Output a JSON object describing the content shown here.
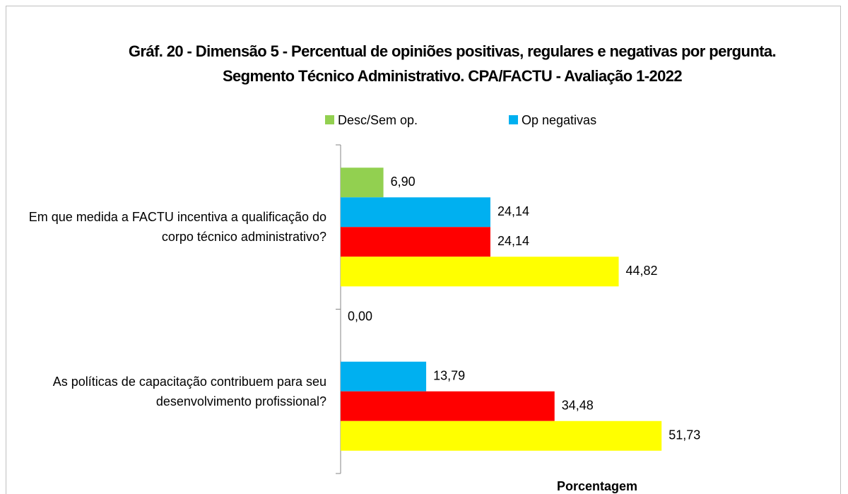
{
  "chart_data": {
    "type": "bar",
    "orientation": "horizontal",
    "title": "Gráf. 20 - Dimensão 5 - Percentual de opiniões positivas, regulares e negativas por pergunta. Segmento Técnico Administrativo. CPA/FACTU - Avaliação 1-2022",
    "x_label": "Porcentagem",
    "categories": [
      "Em que medida a FACTU incentiva a qualificação do corpo técnico administrativo?",
      "As políticas de capacitação contribuem para seu desenvolvimento profissional?"
    ],
    "series": [
      {
        "name": "Desc/Sem op.",
        "color": "#92d050",
        "values": [
          6.9,
          0
        ],
        "value_labels": [
          "6,90",
          "0,00"
        ]
      },
      {
        "name": "Op negativas",
        "color": "#00b0f0",
        "values": [
          24.14,
          13.79
        ],
        "value_labels": [
          "24,14",
          "13,79"
        ]
      },
      {
        "color": "#ff0000",
        "values": [
          24.14,
          34.48
        ],
        "value_labels": [
          "24,14",
          "34,48"
        ]
      },
      {
        "color": "#ffff00",
        "values": [
          44.82,
          51.73
        ],
        "value_labels": [
          "44,82",
          "51,73"
        ]
      }
    ],
    "xlim": [
      0,
      80
    ]
  }
}
